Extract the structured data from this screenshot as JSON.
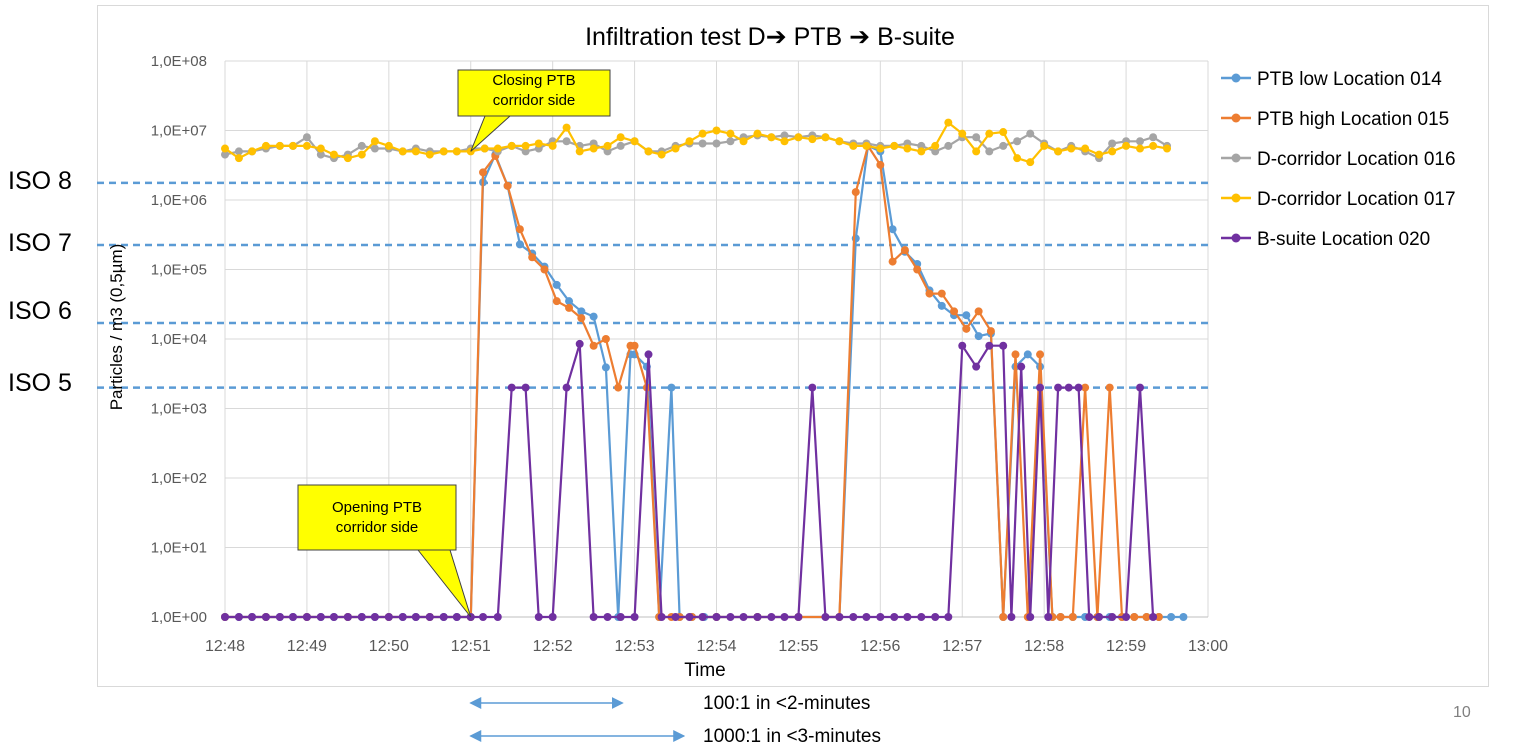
{
  "chart_data": {
    "type": "line",
    "title": "Infiltration test D➔ PTB ➔ B-suite",
    "xlabel": "Time",
    "ylabel": "Particles / m3 (0,5µm)",
    "yscale": "log",
    "ylim": [
      1,
      100000000
    ],
    "xlim_minutes": [
      0,
      12
    ],
    "x_ticks": [
      {
        "v": 0,
        "label": "12:48"
      },
      {
        "v": 1,
        "label": "12:49"
      },
      {
        "v": 2,
        "label": "12:50"
      },
      {
        "v": 3,
        "label": "12:51"
      },
      {
        "v": 4,
        "label": "12:52"
      },
      {
        "v": 5,
        "label": "12:53"
      },
      {
        "v": 6,
        "label": "12:54"
      },
      {
        "v": 7,
        "label": "12:55"
      },
      {
        "v": 8,
        "label": "12:56"
      },
      {
        "v": 9,
        "label": "12:57"
      },
      {
        "v": 10,
        "label": "12:58"
      },
      {
        "v": 11,
        "label": "12:59"
      },
      {
        "v": 12,
        "label": "13:00"
      }
    ],
    "y_ticks": [
      {
        "v": 1,
        "label": "1,0E+00"
      },
      {
        "v": 10,
        "label": "1,0E+01"
      },
      {
        "v": 100,
        "label": "1,0E+02"
      },
      {
        "v": 1000,
        "label": "1,0E+03"
      },
      {
        "v": 10000,
        "label": "1,0E+04"
      },
      {
        "v": 100000,
        "label": "1,0E+05"
      },
      {
        "v": 1000000,
        "label": "1,0E+06"
      },
      {
        "v": 10000000,
        "label": "1,0E+07"
      },
      {
        "v": 100000000,
        "label": "1,0E+08"
      }
    ],
    "iso_lines": [
      {
        "label": "ISO 8",
        "value": 1760000
      },
      {
        "label": "ISO 7",
        "value": 225000
      },
      {
        "label": "ISO 6",
        "value": 17000
      },
      {
        "label": "ISO 5",
        "value": 2000
      }
    ],
    "annotations": [
      {
        "text_line1": "Closing PTB",
        "text_line2": "corridor side",
        "x": 3.0,
        "y": 5000000
      },
      {
        "text_line1": "Opening PTB",
        "text_line2": "corridor side",
        "x": 3.0,
        "y": 1
      }
    ],
    "bottom_notes": [
      {
        "label": "100:1 in <2-minutes",
        "from": 3.0,
        "to": 4.85
      },
      {
        "label": "1000:1 in <3-minutes",
        "from": 3.0,
        "to": 5.6
      }
    ],
    "page_number": "10",
    "series": [
      {
        "name": "PTB low Location 014",
        "color": "#5b9bd5",
        "x": [
          0,
          0.17,
          0.33,
          0.5,
          0.67,
          0.83,
          1.0,
          1.17,
          1.33,
          1.5,
          1.67,
          1.83,
          2.0,
          2.17,
          2.33,
          2.5,
          2.67,
          2.83,
          3.0,
          3.15,
          3.3,
          3.45,
          3.6,
          3.75,
          3.9,
          4.05,
          4.2,
          4.35,
          4.5,
          4.65,
          4.8,
          4.95,
          5.0,
          5.15,
          5.3,
          5.45,
          5.55,
          5.7,
          5.85,
          6.0,
          6.5,
          7.0,
          7.5,
          7.7,
          7.85,
          8.0,
          8.15,
          8.3,
          8.45,
          8.6,
          8.75,
          8.9,
          9.05,
          9.2,
          9.35,
          9.5,
          9.65,
          9.8,
          9.95,
          10.1,
          10.2,
          10.35,
          10.5,
          10.65,
          10.8,
          10.95,
          11.1,
          11.25,
          11.4,
          11.55,
          11.7
        ],
        "y": [
          1,
          1,
          1,
          1,
          1,
          1,
          1,
          1,
          1,
          1,
          1,
          1,
          1,
          1,
          1,
          1,
          1,
          1,
          1,
          1800000,
          4500000,
          1600000,
          230000,
          170000,
          110000,
          60000,
          35000,
          25000,
          21000,
          3900,
          1,
          6000,
          6000,
          4000,
          1,
          2000,
          1,
          1,
          1,
          1,
          1,
          1,
          1,
          280000,
          6000000,
          5000000,
          380000,
          180000,
          120000,
          50000,
          30000,
          22000,
          22000,
          11000,
          12000,
          1,
          4000,
          6000,
          4000,
          1,
          1,
          1,
          1,
          1,
          1,
          1,
          1,
          1,
          1,
          1,
          1
        ]
      },
      {
        "name": "PTB high Location 015",
        "color": "#ed7d31",
        "x": [
          0,
          0.5,
          1.0,
          1.5,
          2.0,
          2.5,
          3.0,
          3.15,
          3.3,
          3.45,
          3.6,
          3.75,
          3.9,
          4.05,
          4.2,
          4.35,
          4.5,
          4.65,
          4.8,
          4.95,
          5.0,
          5.15,
          5.3,
          5.45,
          5.55,
          5.7,
          6.0,
          6.5,
          7.0,
          7.5,
          7.7,
          7.85,
          8.0,
          8.15,
          8.3,
          8.45,
          8.6,
          8.75,
          8.9,
          9.05,
          9.2,
          9.35,
          9.5,
          9.65,
          9.8,
          9.95,
          10.1,
          10.2,
          10.35,
          10.5,
          10.65,
          10.8,
          10.95,
          11.1,
          11.25,
          11.4
        ],
        "y": [
          1,
          1,
          1,
          1,
          1,
          1,
          1,
          2500000,
          4300000,
          1600000,
          380000,
          150000,
          100000,
          35000,
          28000,
          20000,
          8000,
          10000,
          2000,
          8000,
          8000,
          2000,
          1,
          1,
          1,
          1,
          1,
          1,
          1,
          1,
          1300000,
          6000000,
          3200000,
          130000,
          190000,
          100000,
          45000,
          45000,
          25000,
          14000,
          25000,
          13000,
          1,
          6000,
          1,
          6000,
          1,
          1,
          1,
          2000,
          1,
          2000,
          1,
          1,
          1,
          1
        ]
      },
      {
        "name": "D-corridor Location 016",
        "color": "#a5a5a5",
        "x": [
          0,
          0.17,
          0.33,
          0.5,
          0.67,
          0.83,
          1.0,
          1.17,
          1.33,
          1.5,
          1.67,
          1.83,
          2.0,
          2.17,
          2.33,
          2.5,
          2.67,
          2.83,
          3.0,
          3.17,
          3.33,
          3.5,
          3.67,
          3.83,
          4.0,
          4.17,
          4.33,
          4.5,
          4.67,
          4.83,
          5.0,
          5.17,
          5.33,
          5.5,
          5.67,
          5.83,
          6.0,
          6.17,
          6.33,
          6.5,
          6.67,
          6.83,
          7.0,
          7.17,
          7.33,
          7.5,
          7.67,
          7.83,
          8.0,
          8.17,
          8.33,
          8.5,
          8.67,
          8.83,
          9.0,
          9.17,
          9.33,
          9.5,
          9.67,
          9.83,
          10.0,
          10.17,
          10.33,
          10.5,
          10.67,
          10.83,
          11.0,
          11.17,
          11.33,
          11.5
        ],
        "y": [
          4500000,
          5000000,
          5000000,
          5500000,
          6000000,
          6000000,
          8000000,
          4500000,
          4000000,
          4500000,
          6000000,
          5500000,
          5500000,
          5000000,
          5500000,
          5000000,
          5000000,
          5000000,
          5500000,
          5500000,
          5000000,
          6000000,
          5000000,
          5500000,
          7000000,
          7000000,
          6000000,
          6500000,
          5000000,
          6000000,
          7000000,
          5000000,
          5000000,
          6000000,
          6500000,
          6500000,
          6500000,
          7000000,
          8000000,
          8500000,
          8000000,
          8500000,
          8000000,
          8500000,
          8000000,
          7000000,
          6500000,
          6500000,
          6000000,
          6000000,
          6500000,
          6000000,
          5000000,
          6000000,
          8000000,
          8000000,
          5000000,
          6000000,
          7000000,
          9000000,
          6500000,
          5000000,
          6000000,
          5000000,
          4000000,
          6500000,
          7000000,
          7000000,
          8000000,
          6000000
        ]
      },
      {
        "name": "D-corridor Location 017",
        "color": "#ffc000",
        "x": [
          0,
          0.17,
          0.33,
          0.5,
          0.67,
          0.83,
          1.0,
          1.17,
          1.33,
          1.5,
          1.67,
          1.83,
          2.0,
          2.17,
          2.33,
          2.5,
          2.67,
          2.83,
          3.0,
          3.17,
          3.33,
          3.5,
          3.67,
          3.83,
          4.0,
          4.17,
          4.33,
          4.5,
          4.67,
          4.83,
          5.0,
          5.17,
          5.33,
          5.5,
          5.67,
          5.83,
          6.0,
          6.17,
          6.33,
          6.5,
          6.67,
          6.83,
          7.0,
          7.17,
          7.33,
          7.5,
          7.67,
          7.83,
          8.0,
          8.17,
          8.33,
          8.5,
          8.67,
          8.83,
          9.0,
          9.17,
          9.33,
          9.5,
          9.67,
          9.83,
          10.0,
          10.17,
          10.33,
          10.5,
          10.67,
          10.83,
          11.0,
          11.17,
          11.33,
          11.5
        ],
        "y": [
          5500000,
          4000000,
          5000000,
          6000000,
          6000000,
          6000000,
          6000000,
          5500000,
          4500000,
          4000000,
          4500000,
          7000000,
          6000000,
          5000000,
          5000000,
          4500000,
          5000000,
          5000000,
          5000000,
          5500000,
          5500000,
          6000000,
          6000000,
          6500000,
          6000000,
          11000000,
          5000000,
          5500000,
          6000000,
          8000000,
          7000000,
          5000000,
          4500000,
          5500000,
          7000000,
          9000000,
          10000000,
          9000000,
          7000000,
          9000000,
          8000000,
          7000000,
          8000000,
          7500000,
          8000000,
          7000000,
          6000000,
          6000000,
          5500000,
          6000000,
          5500000,
          5000000,
          6000000,
          13000000,
          9000000,
          5000000,
          9000000,
          9500000,
          4000000,
          3500000,
          6000000,
          5000000,
          5500000,
          5500000,
          4500000,
          5000000,
          6000000,
          5500000,
          6000000,
          5500000
        ]
      },
      {
        "name": "B-suite Location 020",
        "color": "#7030a0",
        "x": [
          0,
          0.17,
          0.33,
          0.5,
          0.67,
          0.83,
          1.0,
          1.17,
          1.33,
          1.5,
          1.67,
          1.83,
          2.0,
          2.17,
          2.33,
          2.5,
          2.67,
          2.83,
          3.0,
          3.15,
          3.33,
          3.5,
          3.67,
          3.83,
          4.0,
          4.17,
          4.33,
          4.5,
          4.67,
          4.83,
          5.0,
          5.17,
          5.33,
          5.5,
          5.67,
          5.83,
          6.0,
          6.17,
          6.33,
          6.5,
          6.67,
          6.83,
          7.0,
          7.17,
          7.33,
          7.5,
          7.67,
          7.83,
          8.0,
          8.17,
          8.33,
          8.5,
          8.67,
          8.83,
          9.0,
          9.17,
          9.33,
          9.5,
          9.6,
          9.72,
          9.83,
          9.95,
          10.05,
          10.17,
          10.3,
          10.42,
          10.55,
          10.67,
          10.83,
          11.0,
          11.17,
          11.33
        ],
        "y": [
          1,
          1,
          1,
          1,
          1,
          1,
          1,
          1,
          1,
          1,
          1,
          1,
          1,
          1,
          1,
          1,
          1,
          1,
          1,
          1,
          1,
          2000,
          2000,
          1,
          1,
          2000,
          8500,
          1,
          1,
          1,
          1,
          6000,
          1,
          1,
          1,
          1,
          1,
          1,
          1,
          1,
          1,
          1,
          1,
          2000,
          1,
          1,
          1,
          1,
          1,
          1,
          1,
          1,
          1,
          1,
          8000,
          4000,
          8000,
          8000,
          1,
          4000,
          1,
          2000,
          1,
          2000,
          2000,
          2000,
          1,
          1,
          1,
          1,
          2000,
          1
        ]
      }
    ]
  }
}
